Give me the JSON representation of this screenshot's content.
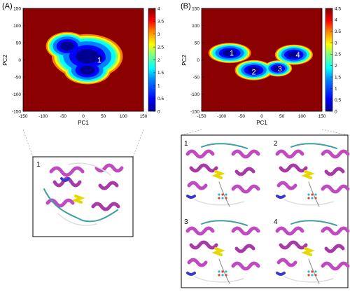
{
  "panels": [
    {
      "tag": "(A)"
    },
    {
      "tag": "(B)"
    }
  ],
  "chart_data": [
    {
      "type": "heatmap",
      "panel": "(A)",
      "title": "",
      "xlabel": "PC1",
      "ylabel": "PC2",
      "xlim": [
        -150,
        150
      ],
      "ylim": [
        -150,
        150
      ],
      "xticks": [
        "-150",
        "-100",
        "-50",
        "0",
        "50",
        "100",
        "150"
      ],
      "yticks": [
        "150",
        "100",
        "50",
        "0",
        "-50",
        "-100",
        "-150"
      ],
      "colorbar": {
        "min": 0,
        "max": 4,
        "ticks": [
          "4",
          "3.5",
          "3",
          "2.5",
          "2",
          "1.5",
          "1",
          "0.5",
          "0"
        ]
      },
      "colormap": [
        "#00008f",
        "#0000ff",
        "#007fff",
        "#00ffff",
        "#7fff7f",
        "#ffff00",
        "#ff7f00",
        "#ff0000",
        "#7f0000"
      ],
      "background_color": "#8b0000",
      "basin_labels": [
        {
          "label": "1",
          "x": 40,
          "y": 0
        }
      ],
      "basins": [
        {
          "cx": 10,
          "cy": 10,
          "rx": 75,
          "ry": 55
        },
        {
          "cx": -40,
          "cy": 40,
          "rx": 45,
          "ry": 35
        },
        {
          "cx": 10,
          "cy": -30,
          "rx": 50,
          "ry": 35
        },
        {
          "cx": 35,
          "cy": 5,
          "rx": 35,
          "ry": 25
        }
      ]
    },
    {
      "type": "heatmap",
      "panel": "(B)",
      "title": "",
      "xlabel": "PC1",
      "ylabel": "PC2",
      "xlim": [
        -150,
        150
      ],
      "ylim": [
        -150,
        150
      ],
      "xticks": [
        "-150",
        "-100",
        "-50",
        "0",
        "50",
        "100",
        "150"
      ],
      "yticks": [
        "150",
        "100",
        "50",
        "0",
        "-50",
        "-100",
        "-150"
      ],
      "colorbar": {
        "min": 0,
        "max": 4.5,
        "ticks": [
          "4.5",
          "4",
          "3.5",
          "3",
          "2.5",
          "2",
          "1.5",
          "1",
          "0.5",
          "0"
        ]
      },
      "colormap": [
        "#00008f",
        "#0000ff",
        "#007fff",
        "#00ffff",
        "#7fff7f",
        "#ffff00",
        "#ff7f00",
        "#ff0000",
        "#7f0000"
      ],
      "background_color": "#8b0000",
      "basin_labels": [
        {
          "label": "1",
          "x": -75,
          "y": 20
        },
        {
          "label": "2",
          "x": -20,
          "y": -35
        },
        {
          "label": "3",
          "x": 45,
          "y": -25
        },
        {
          "label": "4",
          "x": 90,
          "y": 15
        }
      ],
      "basins": [
        {
          "cx": -80,
          "cy": 20,
          "rx": 45,
          "ry": 25
        },
        {
          "cx": -20,
          "cy": -30,
          "rx": 40,
          "ry": 25
        },
        {
          "cx": 40,
          "cy": -25,
          "rx": 30,
          "ry": 20
        },
        {
          "cx": 80,
          "cy": 15,
          "rx": 40,
          "ry": 25
        }
      ]
    }
  ],
  "structure_insets": [
    {
      "panel": "(A)",
      "labels": [
        "1"
      ]
    },
    {
      "panel": "(B)",
      "labels": [
        "1",
        "2",
        "3",
        "4"
      ]
    }
  ]
}
